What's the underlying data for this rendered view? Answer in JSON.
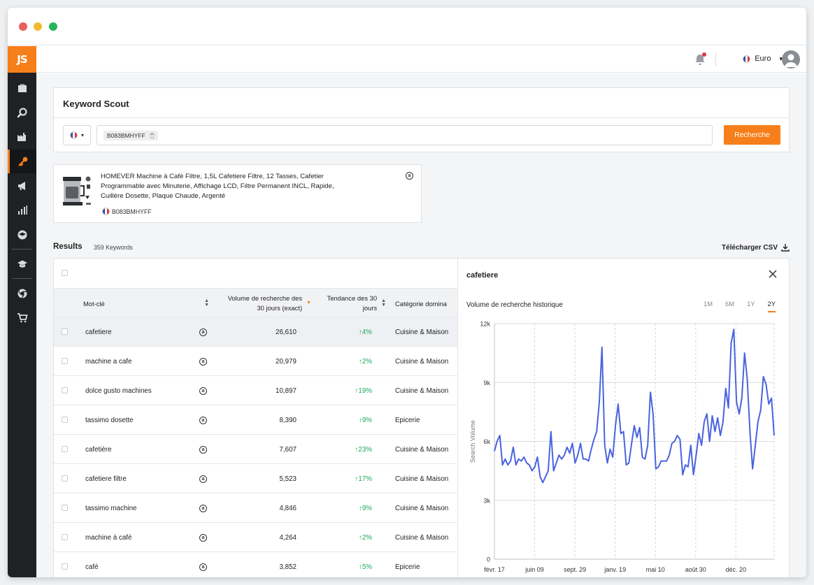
{
  "topbar": {
    "currency": "Euro",
    "currency_caret": "▾"
  },
  "keyword_scout": {
    "title": "Keyword Scout",
    "country_caret": "▾",
    "chip": "B083BMHYFF",
    "search_button": "Recherche"
  },
  "product": {
    "title": "HOMEVER Machine à Café Filtre, 1,5L Cafetiere Filtre, 12 Tasses, Cafetier Programmable avec Minuterie, Affichage LCD, Filtre Permanent INCL, Rapide, Cuillère Dosette, Plaque Chaude, Argenté",
    "asin": "B083BMHYFF"
  },
  "results": {
    "title": "Results",
    "count": "359 Keywords",
    "csv": "Télécharger CSV"
  },
  "table": {
    "headers": {
      "keyword": "Mot-clé",
      "volume": "Volume de recherche des 30 jours (exact)",
      "trend": "Tendance des 30 jours",
      "category": "Catégorie domina"
    },
    "rows": [
      {
        "keyword": "cafetiere",
        "volume": "26,610",
        "trend": "↑4%",
        "category": "Cuisine & Maison"
      },
      {
        "keyword": "machine a cafe",
        "volume": "20,979",
        "trend": "↑2%",
        "category": "Cuisine & Maison"
      },
      {
        "keyword": "dolce gusto machines",
        "volume": "10,897",
        "trend": "↑19%",
        "category": "Cuisine & Maison"
      },
      {
        "keyword": "tassimo dosette",
        "volume": "8,390",
        "trend": "↑9%",
        "category": "Epicerie"
      },
      {
        "keyword": "cafetière",
        "volume": "7,607",
        "trend": "↑23%",
        "category": "Cuisine & Maison"
      },
      {
        "keyword": "cafetiere filtre",
        "volume": "5,523",
        "trend": "↑17%",
        "category": "Cuisine & Maison"
      },
      {
        "keyword": "tassimo machine",
        "volume": "4,846",
        "trend": "↑9%",
        "category": "Cuisine & Maison"
      },
      {
        "keyword": "machine à café",
        "volume": "4,264",
        "trend": "↑2%",
        "category": "Cuisine & Maison"
      },
      {
        "keyword": "café",
        "volume": "3,852",
        "trend": "↑5%",
        "category": "Epicerie"
      }
    ]
  },
  "panel": {
    "title": "cafetiere",
    "subtitle": "Volume de recherche historique",
    "ranges": [
      "1M",
      "6M",
      "1Y",
      "2Y"
    ],
    "active_range": "2Y"
  },
  "chart_data": {
    "type": "line",
    "ylabel": "Search Volume",
    "xlabel": "",
    "y_ticks": [
      "0",
      "3k",
      "6k",
      "9k",
      "12k"
    ],
    "ylim": [
      0,
      12000
    ],
    "x_ticks": [
      "févr. 17",
      "juin 09",
      "sept. 29",
      "janv. 19",
      "mai 10",
      "août 30",
      "déc. 20"
    ],
    "grid": true,
    "color": "#4a63e0",
    "series": [
      {
        "values": [
          5500,
          6000,
          6300,
          4800,
          5100,
          4800,
          5000,
          5700,
          4800,
          5100,
          5000,
          5200,
          4900,
          4800,
          4500,
          4700,
          5200,
          4200,
          3900,
          4200,
          4500,
          6500,
          4500,
          4900,
          5300,
          5100,
          5300,
          5700,
          5400,
          5900,
          4900,
          5300,
          5900,
          5100,
          5100,
          5000,
          5600,
          6100,
          6500,
          8000,
          10800,
          5800,
          4900,
          5600,
          5200,
          6800,
          7900,
          6400,
          6500,
          4800,
          4900,
          5900,
          6800,
          6200,
          6700,
          5200,
          5100,
          5800,
          8500,
          7400,
          4600,
          4700,
          5000,
          5000,
          5000,
          5300,
          5900,
          6000,
          6300,
          6100,
          4300,
          4800,
          4700,
          5800,
          4300,
          5300,
          6400,
          5800,
          7000,
          7400,
          6000,
          7300,
          6500,
          7200,
          6300,
          7000,
          8700,
          7700,
          11000,
          11700,
          8000,
          7400,
          8200,
          10500,
          9200,
          6500,
          4600,
          5800,
          7000,
          7600,
          9300,
          8900,
          7900,
          8200,
          6300
        ]
      }
    ]
  }
}
